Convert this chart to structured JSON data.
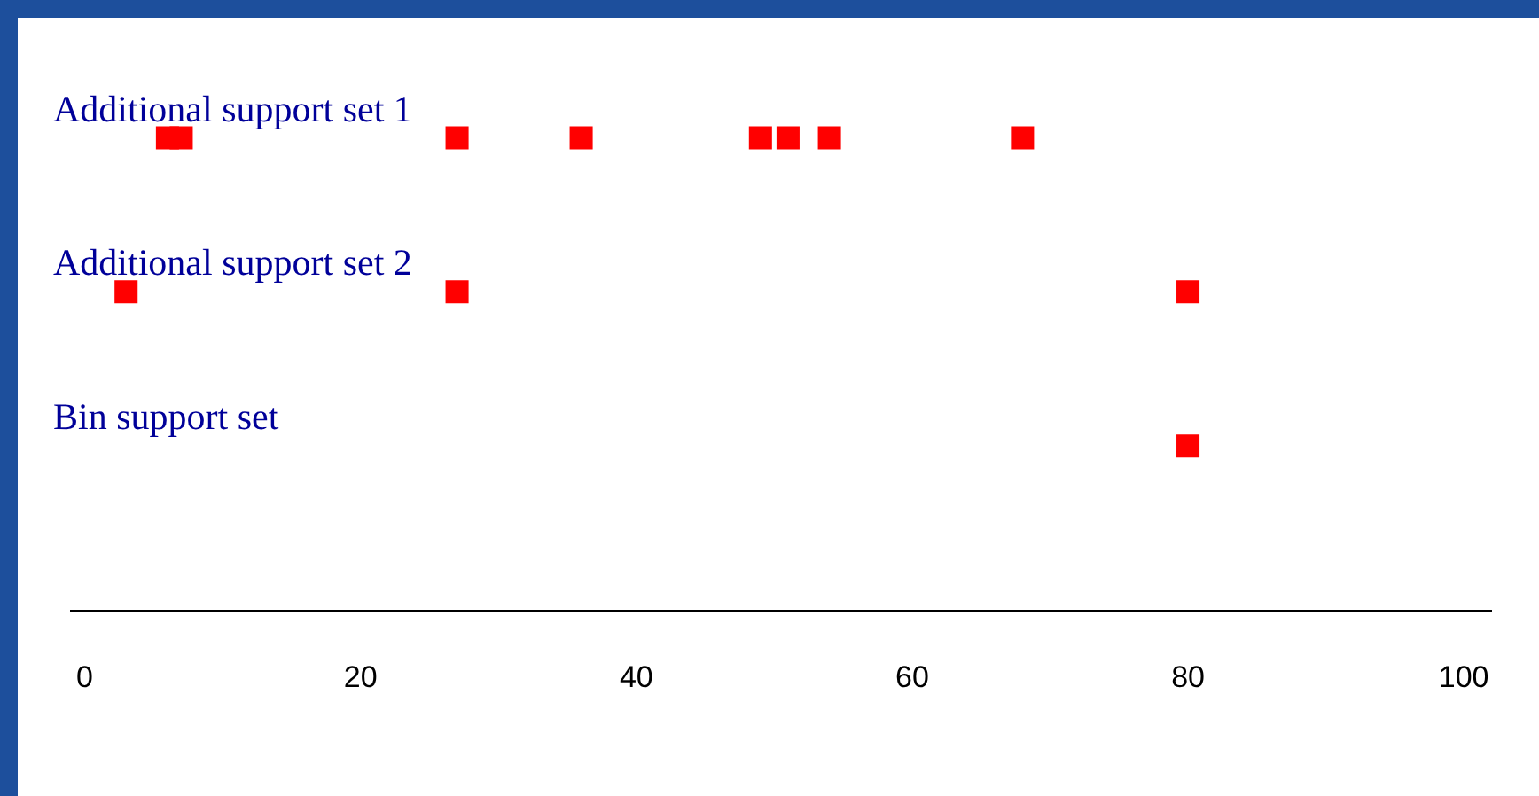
{
  "chart_data": {
    "type": "scatter",
    "orientation": "horizontal",
    "marker": "square",
    "xlim": [
      -1,
      102
    ],
    "xticks": [
      0,
      20,
      40,
      60,
      80,
      100
    ],
    "grid": false,
    "categories": [
      "Additional support set 1",
      "Additional support set 2",
      "Bin support set"
    ],
    "series": [
      {
        "color": "#ff0000",
        "x": [
          "Additional support set 1",
          "Additional support set 1",
          "Additional support set 1",
          "Additional support set 1",
          "Additional support set 1",
          "Additional support set 1",
          "Additional support set 1",
          "Additional support set 1"
        ],
        "values": [
          6,
          7,
          27,
          36,
          49,
          51,
          54,
          68
        ]
      },
      {
        "color": "#ff0000",
        "x": [
          "Additional support set 2",
          "Additional support set 2",
          "Additional support set 2"
        ],
        "values": [
          3,
          27,
          80
        ]
      },
      {
        "color": "#ff0000",
        "x": [
          "Bin support set"
        ],
        "values": [
          80
        ]
      }
    ]
  }
}
